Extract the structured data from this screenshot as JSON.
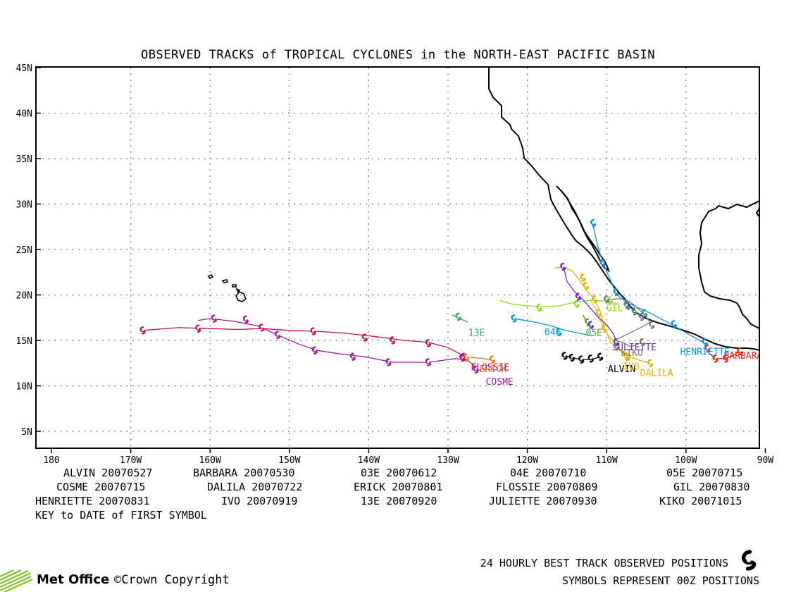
{
  "title": "OBSERVED TRACKS of TROPICAL CYCLONES in the NORTH-EAST PACIFIC BASIN",
  "lat_labels": [
    "45N",
    "40N",
    "35N",
    "30N",
    "25N",
    "20N",
    "15N",
    "10N",
    "5N"
  ],
  "lon_labels": [
    "180",
    "170W",
    "160W",
    "150W",
    "140W",
    "130W",
    "120W",
    "110W",
    "100W",
    "90W"
  ],
  "key_rows": [
    [
      "ALVIN 20070527",
      "BARBARA 20070530",
      "03E 20070612",
      "04E 20070710",
      "05E 20070715"
    ],
    [
      "COSME 20070715",
      "DALILA 20070722",
      "ERICK 20070801",
      "FLOSSIE 20070809",
      "GIL 20070830"
    ],
    [
      "HENRIETTE 20070831",
      "IVO 20070919",
      "13E 20070920",
      "JULIETTE 20070930",
      "KIKO 20071015"
    ]
  ],
  "key_note": "KEY to DATE of FIRST SYMBOL",
  "footer_line1": "24 HOURLY BEST TRACK OBSERVED POSITIONS",
  "footer_line2": "SYMBOLS REPRESENT 00Z POSITIONS",
  "logo_text": "Met Office",
  "copyright": "©Crown Copyright",
  "map_extent": {
    "lon": [
      -182,
      -90
    ],
    "lat": [
      2,
      45
    ]
  },
  "storms": [
    {
      "name": "ALVIN",
      "color": "#000000",
      "label": "ALVIN",
      "track": [
        [
          -110.8,
          13.2
        ],
        [
          -111.5,
          13.0
        ],
        [
          -112.3,
          12.9
        ],
        [
          -113.0,
          12.9
        ],
        [
          -113.8,
          13.0
        ],
        [
          -114.5,
          13.2
        ],
        [
          -115.3,
          13.3
        ]
      ],
      "symbols": [
        [
          -110.8,
          13.2
        ],
        [
          -112.0,
          13.0
        ],
        [
          -113.2,
          12.9
        ],
        [
          -114.4,
          13.1
        ],
        [
          -115.3,
          13.3
        ]
      ]
    },
    {
      "name": "BARBARA",
      "color": "#e8261a",
      "label": "BARBARA",
      "track": [
        [
          -93.2,
          13.8
        ],
        [
          -94.2,
          13.3
        ],
        [
          -95.2,
          13.0
        ],
        [
          -96.2,
          13.0
        ],
        [
          -97.0,
          13.5
        ],
        [
          -97.3,
          14.1
        ]
      ],
      "symbols": [
        [
          -93.2,
          13.8
        ],
        [
          -95.0,
          13.0
        ],
        [
          -96.3,
          13.0
        ],
        [
          -97.3,
          14.1
        ]
      ]
    },
    {
      "name": "03E",
      "color": "#2e8b57",
      "label": "",
      "track": [
        [
          -105.5,
          17.5
        ],
        [
          -106.5,
          18.2
        ]
      ],
      "symbols": [
        [
          -106.5,
          18.2
        ]
      ]
    },
    {
      "name": "04E",
      "color": "#00a0d0",
      "label": "04E",
      "track": [
        [
          -111.8,
          15.5
        ],
        [
          -113.5,
          15.8
        ],
        [
          -115.2,
          16.1
        ],
        [
          -117.0,
          16.6
        ],
        [
          -119.0,
          17.0
        ],
        [
          -121.0,
          17.3
        ],
        [
          -122.0,
          17.5
        ]
      ],
      "symbols": [
        [
          -116.0,
          15.9
        ],
        [
          -121.7,
          17.4
        ]
      ]
    },
    {
      "name": "05E",
      "color": "#4a9e2a",
      "label": "05E",
      "track": [
        [
          -112.0,
          16.3
        ],
        [
          -112.5,
          17.0
        ],
        [
          -113.0,
          17.8
        ]
      ],
      "symbols": [
        [
          -112.4,
          17.0
        ]
      ]
    },
    {
      "name": "COSME",
      "color": "#9b1c9b",
      "label": "COSME",
      "track": [
        [
          -126.3,
          11.7
        ],
        [
          -126.8,
          12.3
        ],
        [
          -127.5,
          12.8
        ],
        [
          -129.0,
          13.0
        ],
        [
          -132.5,
          12.6
        ],
        [
          -137.0,
          12.6
        ],
        [
          -140.5,
          13.2
        ],
        [
          -143.5,
          13.5
        ],
        [
          -146.5,
          13.9
        ],
        [
          -148.8,
          14.6
        ],
        [
          -151.5,
          15.6
        ],
        [
          -154.0,
          16.6
        ],
        [
          -157.0,
          17.1
        ],
        [
          -160.0,
          17.4
        ],
        [
          -161.5,
          17.2
        ]
      ],
      "symbols": [
        [
          -126.5,
          11.8
        ],
        [
          -128.0,
          13.2
        ],
        [
          -132.5,
          12.6
        ],
        [
          -137.5,
          12.6
        ],
        [
          -142.0,
          13.2
        ],
        [
          -146.8,
          13.9
        ],
        [
          -151.5,
          15.6
        ],
        [
          -155.5,
          17.3
        ],
        [
          -159.5,
          17.4
        ]
      ]
    },
    {
      "name": "DALILA",
      "color": "#e6b000",
      "label": "DALILA",
      "track": [
        [
          -104.5,
          12.5
        ],
        [
          -105.8,
          12.8
        ],
        [
          -107.0,
          13.2
        ],
        [
          -108.2,
          13.8
        ],
        [
          -109.5,
          14.8
        ],
        [
          -110.3,
          16.5
        ],
        [
          -110.8,
          18.2
        ],
        [
          -111.6,
          19.6
        ],
        [
          -112.5,
          20.5
        ],
        [
          -113.3,
          21.5
        ],
        [
          -114.3,
          22.6
        ],
        [
          -115.2,
          23.0
        ],
        [
          -116.5,
          23.0
        ]
      ],
      "symbols": [
        [
          -104.5,
          12.5
        ],
        [
          -107.4,
          13.2
        ],
        [
          -110.3,
          16.3
        ],
        [
          -111.5,
          19.5
        ],
        [
          -112.6,
          21.0
        ],
        [
          -113.0,
          21.9
        ]
      ]
    },
    {
      "name": "ERICK",
      "color": "#e87a1a",
      "label": "ERICK",
      "track": [
        [
          -124.4,
          12.8
        ],
        [
          -125.5,
          13.0
        ],
        [
          -126.8,
          13.1
        ],
        [
          -128.0,
          13.2
        ]
      ],
      "symbols": [
        [
          -124.4,
          12.9
        ],
        [
          -127.7,
          13.1
        ]
      ]
    },
    {
      "name": "FLOSSIE",
      "color": "#c01060",
      "label": "FLOSSIE",
      "track": [
        [
          -127.8,
          13.2
        ],
        [
          -130.0,
          14.2
        ],
        [
          -132.5,
          14.8
        ],
        [
          -135.5,
          15.0
        ],
        [
          -139.0,
          15.4
        ],
        [
          -143.0,
          15.8
        ],
        [
          -146.5,
          16.0
        ],
        [
          -150.0,
          16.1
        ],
        [
          -153.5,
          16.3
        ],
        [
          -156.5,
          16.2
        ],
        [
          -160.0,
          16.3
        ],
        [
          -164.0,
          16.4
        ],
        [
          -168.5,
          16.1
        ]
      ],
      "symbols": [
        [
          -128.2,
          13.1
        ],
        [
          -132.5,
          14.7
        ],
        [
          -137.0,
          15.0
        ],
        [
          -140.5,
          15.3
        ],
        [
          -147.0,
          16.0
        ],
        [
          -153.5,
          16.4
        ],
        [
          -161.5,
          16.3
        ],
        [
          -168.5,
          16.1
        ]
      ]
    },
    {
      "name": "GIL",
      "color": "#88dd22",
      "label": "GIL",
      "track": [
        [
          -108.5,
          19.0
        ],
        [
          -110.0,
          19.3
        ],
        [
          -112.0,
          19.4
        ],
        [
          -114.0,
          19.2
        ],
        [
          -116.0,
          18.8
        ],
        [
          -118.0,
          18.7
        ],
        [
          -120.0,
          18.8
        ],
        [
          -122.0,
          19.0
        ],
        [
          -123.5,
          19.4
        ]
      ],
      "symbols": [
        [
          -109.6,
          19.4
        ],
        [
          -113.8,
          19.0
        ],
        [
          -118.5,
          18.6
        ]
      ]
    },
    {
      "name": "HENRIETTE",
      "color": "#1090e0",
      "label": "HENRIETTE",
      "track": [
        [
          -97.5,
          14.6
        ],
        [
          -99.5,
          15.6
        ],
        [
          -101.5,
          16.6
        ],
        [
          -103.0,
          17.3
        ],
        [
          -104.5,
          18.0
        ],
        [
          -106.0,
          18.6
        ],
        [
          -107.5,
          19.2
        ],
        [
          -108.8,
          20.1
        ],
        [
          -109.5,
          21.6
        ],
        [
          -110.3,
          23.2
        ],
        [
          -111.0,
          25.0
        ],
        [
          -111.5,
          26.8
        ],
        [
          -111.8,
          28.0
        ]
      ],
      "symbols": [
        [
          -97.6,
          14.8
        ],
        [
          -101.5,
          16.8
        ],
        [
          -105.2,
          18.0
        ],
        [
          -107.3,
          18.8
        ],
        [
          -108.8,
          20.3
        ],
        [
          -110.5,
          23.5
        ],
        [
          -111.7,
          27.9
        ]
      ]
    },
    {
      "name": "IVO",
      "color": "#e6c000",
      "label": "IVO",
      "track": [
        [
          -107.5,
          13.2
        ],
        [
          -108.3,
          14.0
        ],
        [
          -109.5,
          15.2
        ],
        [
          -110.5,
          16.5
        ],
        [
          -111.0,
          17.5
        ],
        [
          -111.3,
          18.4
        ],
        [
          -112.0,
          19.3
        ]
      ],
      "symbols": [
        [
          -107.6,
          13.3
        ],
        [
          -111.0,
          18.0
        ]
      ]
    },
    {
      "name": "13E",
      "color": "#28b060",
      "label": "13E",
      "track": [
        [
          -127.5,
          17.0
        ],
        [
          -128.5,
          17.4
        ],
        [
          -129.5,
          17.8
        ]
      ],
      "symbols": [
        [
          -128.7,
          17.6
        ]
      ]
    },
    {
      "name": "JULIETTE",
      "color": "#6a2ad0",
      "label": "JULIETTE",
      "track": [
        [
          -108.7,
          14.8
        ],
        [
          -109.2,
          15.8
        ],
        [
          -110.0,
          16.7
        ],
        [
          -111.0,
          17.5
        ],
        [
          -112.0,
          18.5
        ],
        [
          -113.0,
          19.5
        ],
        [
          -114.0,
          20.3
        ],
        [
          -115.0,
          21.5
        ],
        [
          -115.3,
          22.6
        ],
        [
          -115.6,
          23.2
        ]
      ],
      "symbols": [
        [
          -108.8,
          14.8
        ],
        [
          -112.0,
          16.7
        ],
        [
          -113.6,
          19.8
        ],
        [
          -115.5,
          23.1
        ]
      ]
    },
    {
      "name": "KIKO",
      "color": "#777777",
      "label": "KIKO",
      "track": [
        [
          -106.0,
          14.6
        ],
        [
          -107.0,
          14.3
        ],
        [
          -108.0,
          14.8
        ],
        [
          -109.0,
          15.0
        ],
        [
          -105.5,
          16.5
        ],
        [
          -104.5,
          17.0
        ],
        [
          -105.2,
          17.8
        ],
        [
          -106.0,
          18.5
        ],
        [
          -107.0,
          19.2
        ],
        [
          -108.0,
          19.6
        ],
        [
          -110.0,
          19.5
        ]
      ],
      "symbols": [
        [
          -105.5,
          14.8
        ],
        [
          -108.8,
          14.3
        ],
        [
          -104.3,
          16.7
        ],
        [
          -105.6,
          17.6
        ],
        [
          -107.5,
          18.9
        ],
        [
          -110.0,
          19.5
        ]
      ]
    }
  ]
}
